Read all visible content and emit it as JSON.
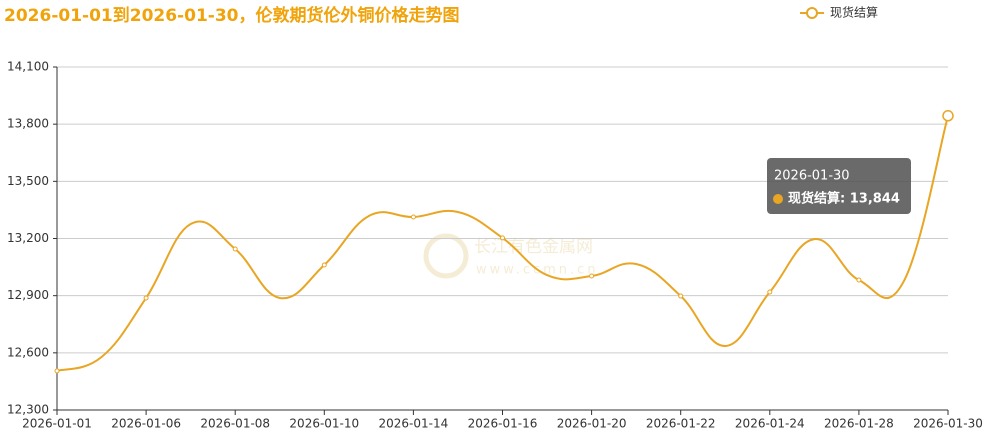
{
  "chart_data": {
    "type": "line",
    "title": "2026-01-01到2026-01-30，伦敦期货伦外铜价格走势图",
    "categories": [
      "2026-01-01",
      null,
      "2026-01-06",
      null,
      "2026-01-08",
      null,
      "2026-01-10",
      null,
      "2026-01-14",
      null,
      "2026-01-16",
      null,
      "2026-01-20",
      null,
      "2026-01-22",
      null,
      "2026-01-24",
      null,
      "2026-01-28",
      null,
      "2026-01-30"
    ],
    "series": [
      {
        "name": "现货结算",
        "color": "#e8a624",
        "values": [
          12505,
          12578,
          12888,
          13276,
          13145,
          12888,
          13061,
          13318,
          13313,
          13339,
          13203,
          13008,
          13003,
          13066,
          12898,
          12636,
          12919,
          13197,
          12982,
          12972,
          13844
        ]
      }
    ],
    "ylim": [
      12300,
      14100
    ],
    "yticks": [
      {
        "value": 12300,
        "label": "12,300"
      },
      {
        "value": 12600,
        "label": "12,600"
      },
      {
        "value": 12900,
        "label": "12,900"
      },
      {
        "value": 13200,
        "label": "13,200"
      },
      {
        "value": 13500,
        "label": "13,500"
      },
      {
        "value": 13800,
        "label": "13,800"
      },
      {
        "value": 14100,
        "label": "14,100"
      }
    ],
    "grid": true,
    "legend": "top-right",
    "tooltip": {
      "title": "2026-01-30",
      "text": "现货结算: 13,844"
    },
    "watermark": {
      "name": "长江有色金属网",
      "url": "www.ccmn.cn"
    }
  }
}
